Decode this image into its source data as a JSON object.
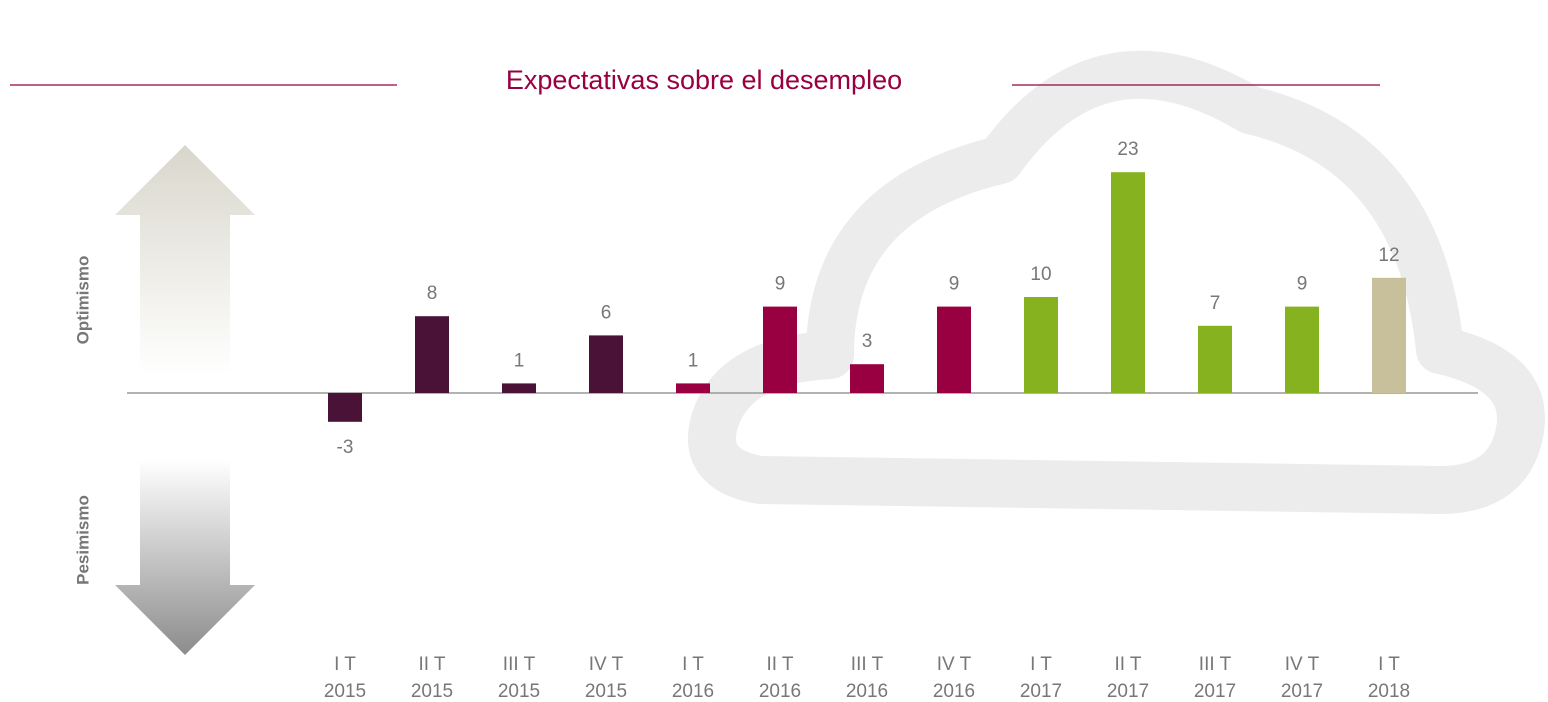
{
  "chart_data": {
    "type": "bar",
    "title": "Expectativas sobre el desempleo",
    "categories": [
      [
        "I T",
        "2015"
      ],
      [
        "II T",
        "2015"
      ],
      [
        "III T",
        "2015"
      ],
      [
        "IV T",
        "2015"
      ],
      [
        "I T",
        "2016"
      ],
      [
        "II T",
        "2016"
      ],
      [
        "III T",
        "2016"
      ],
      [
        "IV T",
        "2016"
      ],
      [
        "I T",
        "2017"
      ],
      [
        "II T",
        "2017"
      ],
      [
        "III T",
        "2017"
      ],
      [
        "IV T",
        "2017"
      ],
      [
        "I T",
        "2018"
      ]
    ],
    "values": [
      -3,
      8,
      1,
      6,
      1,
      9,
      3,
      9,
      10,
      23,
      7,
      9,
      12
    ],
    "colors": [
      "#4b1238",
      "#4b1238",
      "#4b1238",
      "#4b1238",
      "#990041",
      "#990041",
      "#990041",
      "#990041",
      "#86b21f",
      "#86b21f",
      "#86b21f",
      "#86b21f",
      "#c8c09a"
    ],
    "ylim": [
      -10,
      25
    ],
    "top_label": "Optimismo",
    "bottom_label": "Pesimismo"
  }
}
